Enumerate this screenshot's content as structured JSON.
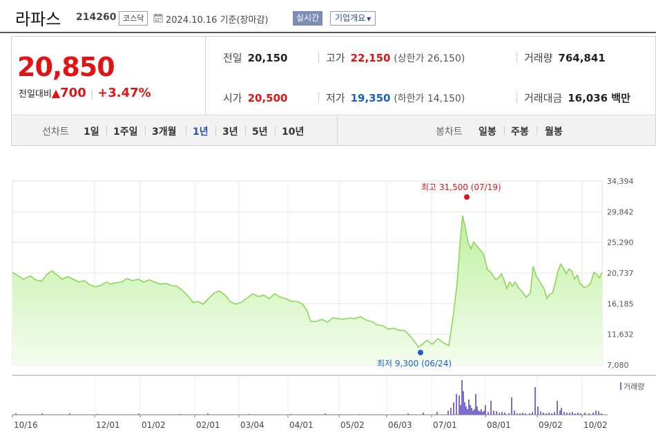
{
  "header": {
    "name": "라파스",
    "code": "214260",
    "market": "코스닥",
    "date": "2024.10.16",
    "basis": "기준(장마감)",
    "realtime_label": "실시간",
    "company_label": "기업개요",
    "calendar_icon": "calendar-icon"
  },
  "quote": {
    "price": "20,850",
    "change_label": "전일대비",
    "change_value": "700",
    "change_pct": "+3.47%",
    "prev_label": "전일",
    "prev_value": "20,150",
    "high_label": "고가",
    "high_value": "22,150",
    "upper_limit": "(상한가 26,150)",
    "volume_label": "거래량",
    "volume_value": "764,841",
    "open_label": "시가",
    "open_value": "20,500",
    "low_label": "저가",
    "low_value": "19,350",
    "lower_limit": "(하한가 14,150)",
    "amount_label": "거래대금",
    "amount_value": "16,036 백만"
  },
  "periods": {
    "line_label": "선차트",
    "line_items": [
      "1일",
      "1주일",
      "3개월",
      "1년",
      "3년",
      "5년",
      "10년"
    ],
    "active": "1년",
    "candle_label": "봉차트",
    "candle_items": [
      "일봉",
      "주봉",
      "월봉"
    ]
  },
  "colors": {
    "up": "#e01414",
    "down": "#1a5fc4",
    "line": "#8bd65a",
    "fill_top": "#bff0a0",
    "fill_bottom": "#f4fdee"
  },
  "chart_data": {
    "type": "area",
    "y_ticks": [
      "34,394",
      "29,842",
      "25,290",
      "20,737",
      "16,185",
      "11,632",
      "7,080"
    ],
    "ylim": [
      7080,
      34394
    ],
    "x_labels": [
      "10/16",
      "12/01",
      "01/02",
      "02/01",
      "03/04",
      "04/01",
      "05/02",
      "06/03",
      "07/01",
      "08/01",
      "09/02",
      "10/02"
    ],
    "high_annotation": {
      "label": "최고 31,500 (07/19)",
      "value": 31500
    },
    "low_annotation": {
      "label": "최저 9,300 (06/24)",
      "value": 9300
    },
    "volume_label": "거래량",
    "grid": true
  }
}
